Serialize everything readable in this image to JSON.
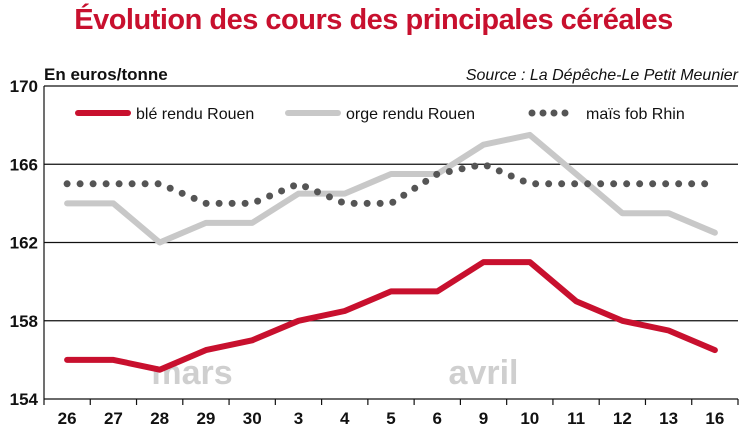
{
  "chart_data": {
    "type": "line",
    "title": "Évolution des cours des principales céréales",
    "ylabel": "En euros/tonne",
    "source": "Source : La Dépêche-Le Petit Meunier",
    "ylim": [
      154,
      170
    ],
    "yticks": [
      154,
      158,
      162,
      166,
      170
    ],
    "grid": true,
    "legend_position": "top",
    "categories": [
      "26",
      "27",
      "28",
      "29",
      "30",
      "3",
      "4",
      "5",
      "6",
      "9",
      "10",
      "11",
      "12",
      "13",
      "16"
    ],
    "month_labels": [
      {
        "label": "mars",
        "at_index": 2.7
      },
      {
        "label": "avril",
        "at_index": 9.0
      }
    ],
    "series": [
      {
        "name": "blé rendu Rouen",
        "color": "#c8102e",
        "style": "solid",
        "values": [
          156,
          156,
          155.5,
          156.5,
          157,
          158,
          158.5,
          159.5,
          159.5,
          161,
          161,
          159,
          158,
          157.5,
          156.5
        ]
      },
      {
        "name": "orge rendu Rouen",
        "color": "#c8c8c8",
        "style": "solid",
        "values": [
          164,
          164,
          162,
          163,
          163,
          164.5,
          164.5,
          165.5,
          165.5,
          167,
          167.5,
          165.5,
          163.5,
          163.5,
          162.5
        ]
      },
      {
        "name": "maïs fob Rhin",
        "color": "#555555",
        "style": "dotted",
        "values": [
          165,
          165,
          165,
          164,
          164,
          165,
          164,
          164,
          165.5,
          166,
          165,
          165,
          165,
          165,
          165
        ]
      }
    ]
  }
}
